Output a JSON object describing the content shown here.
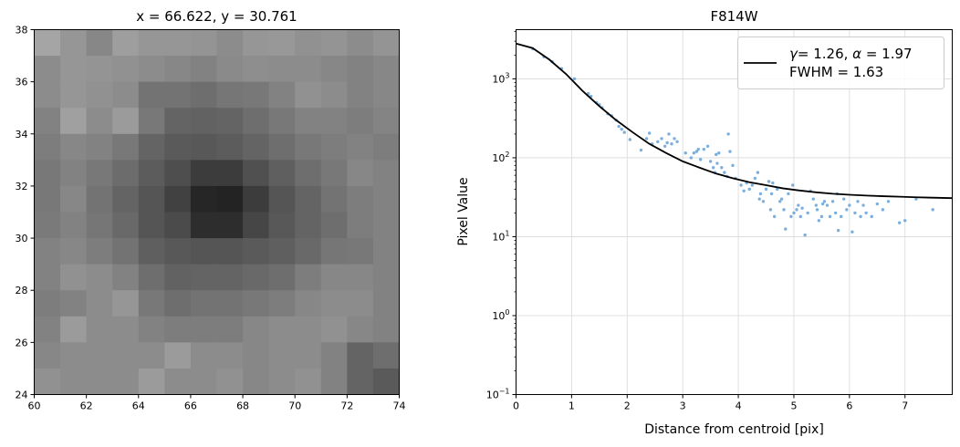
{
  "chart_data": [
    {
      "type": "heatmap",
      "title": "x = 66.622, y = 30.761",
      "colormap": "gray",
      "xlim": [
        60,
        74
      ],
      "ylim": [
        24,
        38
      ],
      "xticks": [
        60,
        62,
        64,
        66,
        68,
        70,
        72,
        74
      ],
      "yticks": [
        24,
        26,
        28,
        30,
        32,
        34,
        36,
        38
      ],
      "pixel_grid_origin": [
        60,
        24
      ],
      "brightness_rows_top_to_bottom": [
        [
          165,
          150,
          135,
          158,
          150,
          150,
          148,
          140,
          150,
          152,
          145,
          148,
          140,
          148
        ],
        [
          140,
          150,
          148,
          145,
          140,
          135,
          130,
          138,
          142,
          140,
          140,
          135,
          130,
          135
        ],
        [
          140,
          150,
          145,
          140,
          115,
          115,
          110,
          118,
          120,
          130,
          145,
          140,
          130,
          135
        ],
        [
          130,
          160,
          140,
          155,
          120,
          100,
          98,
          100,
          110,
          120,
          130,
          130,
          125,
          132
        ],
        [
          125,
          135,
          130,
          120,
          100,
          90,
          88,
          92,
          100,
          110,
          120,
          125,
          130,
          125
        ],
        [
          120,
          130,
          120,
          108,
          92,
          78,
          60,
          60,
          80,
          95,
          110,
          120,
          135,
          130
        ],
        [
          120,
          135,
          115,
          100,
          85,
          65,
          38,
          35,
          60,
          85,
          100,
          115,
          125,
          130
        ],
        [
          122,
          130,
          118,
          105,
          85,
          75,
          45,
          45,
          70,
          88,
          100,
          110,
          125,
          130
        ],
        [
          130,
          135,
          125,
          115,
          95,
          88,
          85,
          85,
          90,
          95,
          105,
          118,
          120,
          130
        ],
        [
          130,
          145,
          140,
          130,
          110,
          98,
          100,
          100,
          105,
          110,
          125,
          135,
          135,
          130
        ],
        [
          125,
          130,
          140,
          150,
          120,
          110,
          115,
          115,
          120,
          125,
          135,
          140,
          140,
          130
        ],
        [
          130,
          155,
          140,
          140,
          130,
          125,
          125,
          125,
          135,
          140,
          140,
          145,
          135,
          130
        ],
        [
          135,
          140,
          140,
          140,
          140,
          155,
          140,
          140,
          135,
          140,
          140,
          130,
          100,
          110
        ],
        [
          145,
          140,
          140,
          140,
          155,
          140,
          140,
          145,
          135,
          140,
          145,
          130,
          100,
          90
        ]
      ]
    },
    {
      "type": "scatter",
      "title": "F814W",
      "xlabel": "Distance from centroid [pix]",
      "ylabel": "Pixel Value",
      "yscale": "log",
      "xlim": [
        0,
        7.85
      ],
      "ylim": [
        0.1,
        4200
      ],
      "xticks": [
        0,
        1,
        2,
        3,
        4,
        5,
        6,
        7
      ],
      "yticks": [
        {
          "value": 0.1,
          "base": "10",
          "exp": "−1"
        },
        {
          "value": 1,
          "base": "10",
          "exp": "0"
        },
        {
          "value": 10,
          "base": "10",
          "exp": "1"
        },
        {
          "value": 100,
          "base": "10",
          "exp": "2"
        },
        {
          "value": 1000,
          "base": "10",
          "exp": "3"
        }
      ],
      "grid": true,
      "legend": {
        "placement": "upper right",
        "line1_math": "γ",
        "line1_a": "= 1.26, ",
        "line1_math2": "α",
        "line1_b": " = 1.97",
        "line2": "FWHM = 1.63"
      },
      "fit_curve": {
        "color": "#000000",
        "x": [
          0,
          0.3,
          0.6,
          0.9,
          1.2,
          1.5,
          1.8,
          2.1,
          2.4,
          2.7,
          3.0,
          3.3,
          3.6,
          3.9,
          4.2,
          4.5,
          4.8,
          5.1,
          5.4,
          5.7,
          6.0,
          6.3,
          6.6,
          6.9,
          7.2,
          7.5,
          7.85
        ],
        "y": [
          2800,
          2450,
          1750,
          1150,
          700,
          450,
          300,
          210,
          150,
          115,
          90,
          75,
          63,
          55,
          49,
          45,
          41,
          38.5,
          36.5,
          35,
          34,
          33.2,
          32.6,
          32.1,
          31.6,
          31.2,
          30.8
        ]
      },
      "scatter_color": "#5b9bd5",
      "points": [
        [
          0.3,
          2400
        ],
        [
          0.5,
          1900
        ],
        [
          0.65,
          1650
        ],
        [
          0.82,
          1350
        ],
        [
          1.05,
          1000
        ],
        [
          1.3,
          650
        ],
        [
          1.35,
          600
        ],
        [
          1.45,
          500
        ],
        [
          1.5,
          470
        ],
        [
          1.55,
          430
        ],
        [
          1.65,
          360
        ],
        [
          1.72,
          340
        ],
        [
          1.8,
          300
        ],
        [
          1.85,
          250
        ],
        [
          1.9,
          230
        ],
        [
          1.95,
          210
        ],
        [
          2.05,
          170
        ],
        [
          2.25,
          125
        ],
        [
          2.35,
          175
        ],
        [
          2.4,
          205
        ],
        [
          2.45,
          150
        ],
        [
          2.55,
          160
        ],
        [
          2.62,
          175
        ],
        [
          2.68,
          140
        ],
        [
          2.72,
          155
        ],
        [
          2.75,
          200
        ],
        [
          2.8,
          150
        ],
        [
          2.85,
          175
        ],
        [
          2.9,
          160
        ],
        [
          3.05,
          115
        ],
        [
          3.15,
          100
        ],
        [
          3.2,
          115
        ],
        [
          3.25,
          120
        ],
        [
          3.28,
          128
        ],
        [
          3.32,
          95
        ],
        [
          3.38,
          128
        ],
        [
          3.45,
          140
        ],
        [
          3.5,
          90
        ],
        [
          3.55,
          75
        ],
        [
          3.58,
          65
        ],
        [
          3.6,
          110
        ],
        [
          3.62,
          85
        ],
        [
          3.65,
          115
        ],
        [
          3.7,
          75
        ],
        [
          3.75,
          65
        ],
        [
          3.8,
          58
        ],
        [
          3.82,
          200
        ],
        [
          3.85,
          120
        ],
        [
          3.9,
          80
        ],
        [
          3.95,
          55
        ],
        [
          4.05,
          45
        ],
        [
          4.1,
          38
        ],
        [
          4.15,
          48
        ],
        [
          4.2,
          40
        ],
        [
          4.25,
          45
        ],
        [
          4.3,
          55
        ],
        [
          4.35,
          65
        ],
        [
          4.38,
          30
        ],
        [
          4.4,
          35
        ],
        [
          4.45,
          28
        ],
        [
          4.5,
          40
        ],
        [
          4.55,
          50
        ],
        [
          4.58,
          22
        ],
        [
          4.6,
          35
        ],
        [
          4.62,
          48
        ],
        [
          4.65,
          18
        ],
        [
          4.7,
          40
        ],
        [
          4.75,
          28
        ],
        [
          4.78,
          30
        ],
        [
          4.82,
          22
        ],
        [
          4.85,
          12.5
        ],
        [
          4.9,
          35
        ],
        [
          4.95,
          18
        ],
        [
          4.98,
          45
        ],
        [
          5.0,
          20
        ],
        [
          5.05,
          22
        ],
        [
          5.08,
          25
        ],
        [
          5.12,
          18
        ],
        [
          5.15,
          23
        ],
        [
          5.2,
          10.5
        ],
        [
          5.25,
          20
        ],
        [
          5.3,
          38
        ],
        [
          5.35,
          30
        ],
        [
          5.4,
          25
        ],
        [
          5.42,
          22
        ],
        [
          5.45,
          16
        ],
        [
          5.5,
          18
        ],
        [
          5.52,
          26
        ],
        [
          5.55,
          28
        ],
        [
          5.6,
          25
        ],
        [
          5.65,
          18
        ],
        [
          5.7,
          28
        ],
        [
          5.75,
          20
        ],
        [
          5.78,
          35
        ],
        [
          5.8,
          12
        ],
        [
          5.85,
          18
        ],
        [
          5.9,
          30
        ],
        [
          5.95,
          22
        ],
        [
          6.0,
          25
        ],
        [
          6.05,
          11.5
        ],
        [
          6.1,
          20
        ],
        [
          6.15,
          28
        ],
        [
          6.2,
          18
        ],
        [
          6.25,
          25
        ],
        [
          6.3,
          20
        ],
        [
          6.4,
          18
        ],
        [
          6.5,
          26
        ],
        [
          6.6,
          22
        ],
        [
          6.7,
          28
        ],
        [
          6.9,
          15
        ],
        [
          7.0,
          16
        ],
        [
          7.2,
          30
        ],
        [
          7.5,
          22
        ]
      ]
    }
  ]
}
